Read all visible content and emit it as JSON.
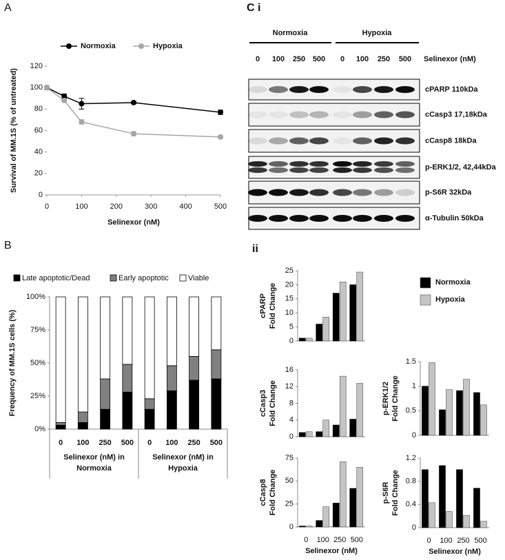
{
  "labels": {
    "a": "A",
    "b": "B",
    "ci": "C i",
    "cii": "ii"
  },
  "blot": {
    "groups": [
      "Normoxia",
      "Hypoxia"
    ],
    "doses": [
      "0",
      "100",
      "250",
      "500",
      "0",
      "100",
      "250",
      "500"
    ],
    "dose_label": "Selinexor (nM)",
    "bands": [
      "cPARP 110kDa",
      "cCasp3 17,18kDa",
      "cCasp8 18kDa",
      "p-ERK1/2, 42,44kDa",
      "p-S6R 32kDa",
      "α-Tubulin 50kDa"
    ]
  },
  "chart_data": [
    {
      "type": "line",
      "xlabel": "Selinexor (nM)",
      "ylabel": "Survival of MM.1S (% of untreated)",
      "x": [
        0,
        50,
        100,
        250,
        500
      ],
      "series": [
        {
          "name": "Normoxia",
          "color": "#000000",
          "values": [
            100,
            92,
            85,
            86,
            77
          ],
          "errors": [
            2,
            2,
            5,
            1,
            2
          ]
        },
        {
          "name": "Hypoxia",
          "color": "#a6a6a6",
          "values": [
            100,
            88,
            68,
            57,
            54
          ],
          "errors": [
            2,
            1,
            2,
            2,
            1
          ]
        }
      ],
      "xlim": [
        0,
        500
      ],
      "xticks": [
        0,
        100,
        200,
        300,
        400,
        500
      ],
      "ylim": [
        0,
        120
      ],
      "yticks": [
        0,
        20,
        40,
        60,
        80,
        100,
        120
      ],
      "legend": "top"
    },
    {
      "type": "stacked_bar",
      "ylabel": "Frequency of MM.1S cells (%)",
      "categories": [
        "0",
        "100",
        "250",
        "500",
        "0",
        "100",
        "250",
        "500"
      ],
      "groups": [
        [
          "Selinexor (nM) in",
          "Normoxia"
        ],
        [
          "Selinexor (nM) in",
          "Hypoxia"
        ]
      ],
      "series": [
        {
          "name": "Late apoptotic/Dead",
          "color": "#000000",
          "values": [
            3,
            5,
            15,
            28,
            15,
            29,
            37,
            38
          ]
        },
        {
          "name": "Early apoptotic",
          "color": "#808080",
          "values": [
            2,
            8,
            23,
            21,
            8,
            19,
            18,
            22
          ]
        },
        {
          "name": "Viable",
          "color": "#ffffff",
          "values": [
            95,
            87,
            62,
            51,
            77,
            52,
            45,
            40
          ]
        }
      ],
      "ylim": [
        0,
        100
      ],
      "yticks": [
        {
          "value": 0,
          "label": "0%"
        },
        {
          "value": 25,
          "label": "25%"
        },
        {
          "value": 50,
          "label": "50%"
        },
        {
          "value": 75,
          "label": "75%"
        },
        {
          "value": 100,
          "label": "100%"
        }
      ],
      "legend": "top"
    },
    {
      "type": "bar",
      "title": "cPARP",
      "ylabel": "Fold Change",
      "categories": [
        null,
        null,
        null,
        null
      ],
      "series": [
        {
          "name": "Normoxia",
          "color": "#000000",
          "values": [
            1,
            6,
            17,
            20
          ]
        },
        {
          "name": "Hypoxia",
          "color": "#c4c4c4",
          "values": [
            1,
            8.5,
            21,
            24.5
          ]
        }
      ],
      "ylim": [
        0,
        25
      ],
      "yticks": [
        0,
        5,
        10,
        15,
        20,
        25
      ],
      "legend": "right"
    },
    {
      "type": "bar",
      "title": "cCasp3",
      "ylabel": "Fold Change",
      "categories": [
        null,
        null,
        null,
        null
      ],
      "series": [
        {
          "color": "#000000",
          "values": [
            1,
            1.2,
            2.8,
            4.2
          ]
        },
        {
          "color": "#c4c4c4",
          "values": [
            1.2,
            4,
            14.5,
            12.8
          ]
        }
      ],
      "ylim": [
        0,
        16
      ],
      "yticks": [
        0,
        4,
        8,
        12,
        16
      ]
    },
    {
      "type": "bar",
      "title": "cCasp8",
      "ylabel": "Fold Change",
      "xlabel": "Selinexor (nM)",
      "categories": [
        "0",
        "100",
        "250",
        "500"
      ],
      "series": [
        {
          "color": "#000000",
          "values": [
            1,
            7,
            26,
            42
          ]
        },
        {
          "color": "#c4c4c4",
          "values": [
            1,
            22,
            71,
            65
          ]
        }
      ],
      "ylim": [
        0,
        75
      ],
      "yticks": [
        0,
        25,
        50,
        75
      ]
    },
    {
      "type": "bar",
      "title": "p-ERK1/2",
      "ylabel": "Fold Change",
      "categories": [
        null,
        null,
        null,
        null
      ],
      "series": [
        {
          "color": "#000000",
          "values": [
            1,
            0.52,
            0.91,
            0.87
          ]
        },
        {
          "color": "#c4c4c4",
          "values": [
            1.48,
            0.93,
            1.14,
            0.62
          ]
        }
      ],
      "ylim": [
        0,
        1.5
      ],
      "yticks": [
        0,
        0.5,
        1,
        1.5
      ]
    },
    {
      "type": "bar",
      "title": "p-S6R",
      "ylabel": "Fold Change",
      "xlabel": "Selinexor (nM)",
      "categories": [
        "0",
        "100",
        "250",
        "500"
      ],
      "series": [
        {
          "color": "#000000",
          "values": [
            1,
            1.07,
            1,
            0.68
          ]
        },
        {
          "color": "#c4c4c4",
          "values": [
            0.43,
            0.28,
            0.21,
            0.11
          ]
        }
      ],
      "ylim": [
        0,
        1.2
      ],
      "yticks": [
        0,
        0.4,
        0.8,
        1.2
      ]
    }
  ]
}
